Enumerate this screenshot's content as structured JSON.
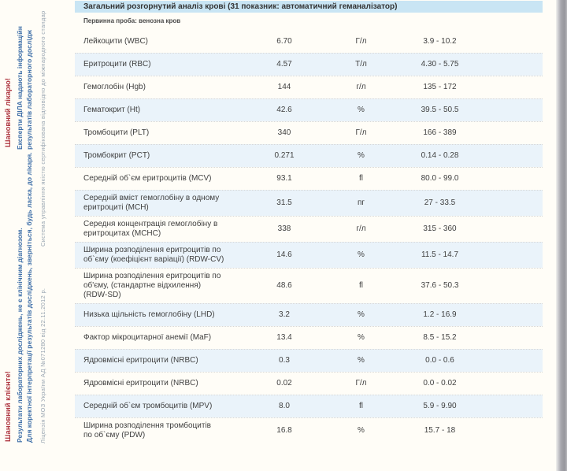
{
  "header": {
    "title": "Загальний розгорнутий аналіз крові (31 показник: автоматичний геманалізатор)",
    "sample_label": "Первинна проба: венозна кров"
  },
  "table": {
    "rows": [
      {
        "name": "Лейкоцити (WBC)",
        "value": "6.70",
        "unit": "Г/л",
        "range": "3.9 - 10.2",
        "stripe": false
      },
      {
        "name": "Еритроцити (RBC)",
        "value": "4.57",
        "unit": "Т/л",
        "range": "4.30 - 5.75",
        "stripe": true
      },
      {
        "name": "Гемоглобін (Hgb)",
        "value": "144",
        "unit": "г/л",
        "range": "135 - 172",
        "stripe": false
      },
      {
        "name": "Гематокрит (Ht)",
        "value": "42.6",
        "unit": "%",
        "range": "39.5 - 50.5",
        "stripe": true
      },
      {
        "name": "Тромбоцити (PLT)",
        "value": "340",
        "unit": "Г/л",
        "range": "166 - 389",
        "stripe": false
      },
      {
        "name": "Тромбокрит (PCT)",
        "value": "0.271",
        "unit": "%",
        "range": "0.14 - 0.28",
        "stripe": true
      },
      {
        "name": "Середній об`єм еритроцитів (MCV)",
        "value": "93.1",
        "unit": "fl",
        "range": "80.0 - 99.0",
        "stripe": false
      },
      {
        "name": "Середній вміст гемоглобіну в одному\nеритроциті (MCH)",
        "value": "31.5",
        "unit": "пг",
        "range": "27 - 33.5",
        "stripe": true
      },
      {
        "name": "Середня концентрація гемоглобіну в\nеритроцитах (MCHC)",
        "value": "338",
        "unit": "г/л",
        "range": "315 - 360",
        "stripe": false
      },
      {
        "name": "Ширина розподілення еритроцитів по\nоб`єму (коефіцієнт варіації) (RDW-CV)",
        "value": "14.6",
        "unit": "%",
        "range": "11.5 - 14.7",
        "stripe": true
      },
      {
        "name": "Ширина розподілення еритроцитів по\nоб'єму, (стандартне відхилення)\n(RDW-SD)",
        "value": "48.6",
        "unit": "fl",
        "range": "37.6 - 50.3",
        "stripe": false
      },
      {
        "name": "Низька щільність гемоглобіну (LHD)",
        "value": "3.2",
        "unit": "%",
        "range": "1.2 - 16.9",
        "stripe": true
      },
      {
        "name": "Фактор мікроцитарної анемії (MaF)",
        "value": "13.4",
        "unit": "%",
        "range": "8.5 - 15.2",
        "stripe": false
      },
      {
        "name": "Ядровмісні еритроцити (NRBC)",
        "value": "0.3",
        "unit": "%",
        "range": "0.0 - 0.6",
        "stripe": true
      },
      {
        "name": "Ядровмісні еритроцити (NRBC)",
        "value": "0.02",
        "unit": "Г/л",
        "range": "0.0 - 0.02",
        "stripe": false
      },
      {
        "name": "Середній об`єм тромбоцитів (MPV)",
        "value": "8.0",
        "unit": "fl",
        "range": "5.9 - 9.90",
        "stripe": true
      },
      {
        "name": "Ширина розподілення тромбоцитів\nпо об`єму (PDW)",
        "value": "16.8",
        "unit": "%",
        "range": "15.7 - 18",
        "stripe": false
      }
    ]
  },
  "sidebar": {
    "doctor_note": {
      "salutation": "Шановний лікарю!",
      "line1": "Експерти ДІЛА надають інформаційн",
      "line2": "результатів лабораторного дослідж"
    },
    "client_note": {
      "salutation": "Шановний клієнте!",
      "line1": "Результати лабораторних досліджень, не є клінічним діагнозом.",
      "line2": "Для коректної інтерпретації результатів досліджень, зверніться, будь ласка, до лікаря."
    },
    "certification": "Система управління якістю сертифікована відповідно до міжнародного стандар",
    "license": "Ліцензія МОЗ України АД №071280 від 22.11.2012 р."
  },
  "colors": {
    "header_bg": "#c9e5f4",
    "stripe_bg": "#eaf3fa",
    "accent_red": "#b03a44",
    "accent_blue": "#3f6fa8",
    "muted_gray": "#9aa6b2"
  }
}
